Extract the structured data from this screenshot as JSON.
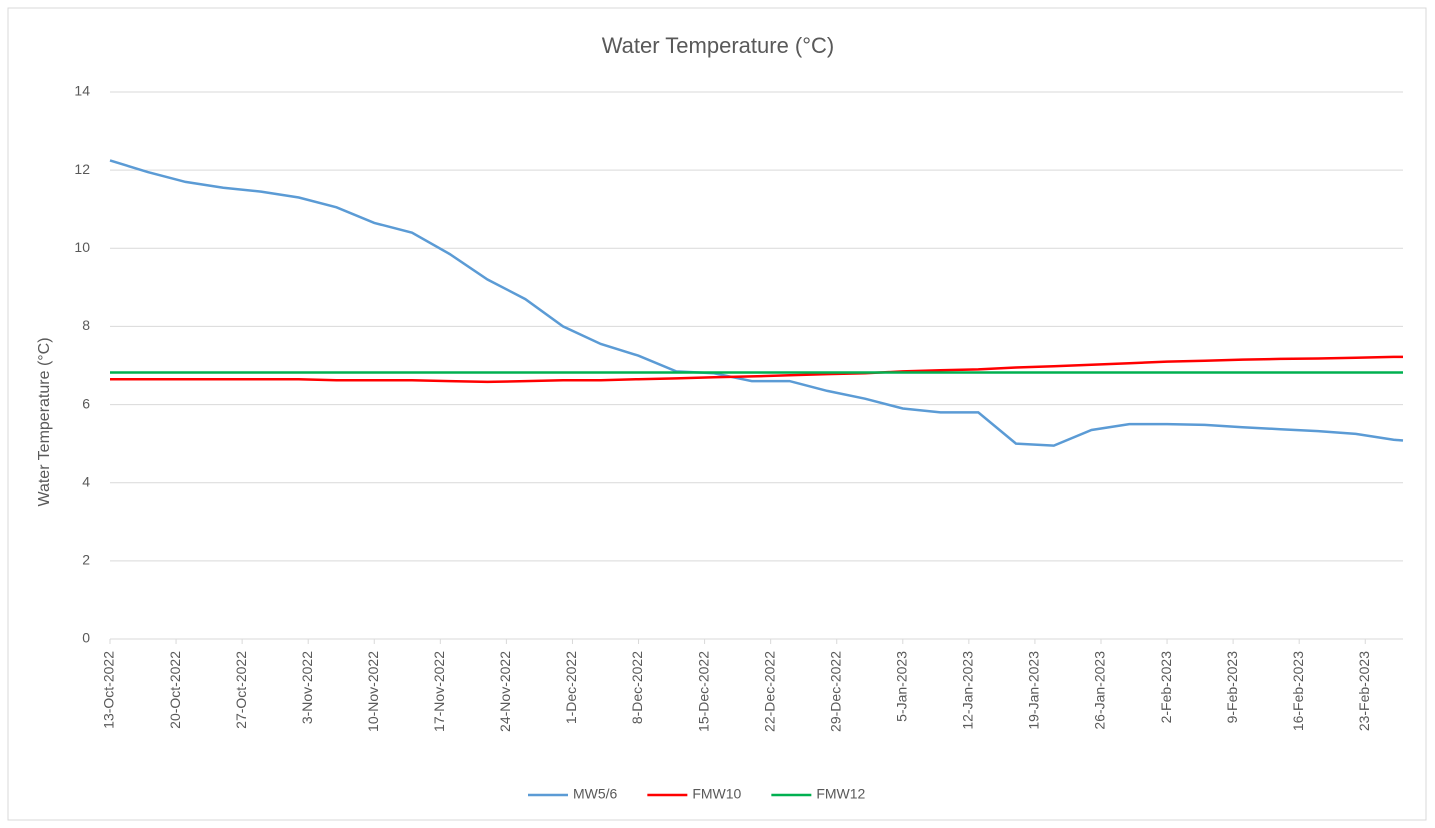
{
  "chart_data": {
    "type": "line",
    "title": "Water Temperature  (°C)",
    "y_label": "Water Temperature (°C)",
    "x": [
      "13-Oct-2022",
      "17-Oct-2022",
      "21-Oct-2022",
      "25-Oct-2022",
      "29-Oct-2022",
      "2-Nov-2022",
      "6-Nov-2022",
      "10-Nov-2022",
      "14-Nov-2022",
      "18-Nov-2022",
      "22-Nov-2022",
      "26-Nov-2022",
      "30-Nov-2022",
      "4-Dec-2022",
      "8-Dec-2022",
      "12-Dec-2022",
      "16-Dec-2022",
      "20-Dec-2022",
      "24-Dec-2022",
      "28-Dec-2022",
      "1-Jan-2023",
      "5-Jan-2023",
      "9-Jan-2023",
      "13-Jan-2023",
      "17-Jan-2023",
      "21-Jan-2023",
      "25-Jan-2023",
      "29-Jan-2023",
      "2-Feb-2023",
      "6-Feb-2023",
      "10-Feb-2023",
      "14-Feb-2023",
      "18-Feb-2023",
      "22-Feb-2023",
      "26-Feb-2023",
      "27-Feb-2023"
    ],
    "series": [
      {
        "name": "MW5/6",
        "color": "#5b9bd5",
        "values": [
          12.25,
          11.95,
          11.7,
          11.55,
          11.45,
          11.3,
          11.05,
          10.65,
          10.4,
          9.85,
          9.2,
          8.7,
          8.0,
          7.55,
          7.25,
          6.85,
          6.8,
          6.6,
          6.6,
          6.35,
          6.15,
          5.9,
          5.8,
          5.8,
          5.0,
          4.95,
          5.35,
          5.5,
          5.5,
          5.48,
          5.42,
          5.37,
          5.32,
          5.25,
          5.1,
          5.08
        ]
      },
      {
        "name": "FMW10",
        "color": "#ff0000",
        "values": [
          6.65,
          6.65,
          6.65,
          6.65,
          6.65,
          6.65,
          6.62,
          6.62,
          6.62,
          6.6,
          6.58,
          6.6,
          6.62,
          6.62,
          6.65,
          6.67,
          6.7,
          6.72,
          6.75,
          6.78,
          6.8,
          6.85,
          6.88,
          6.9,
          6.95,
          6.98,
          7.02,
          7.06,
          7.1,
          7.12,
          7.15,
          7.17,
          7.18,
          7.2,
          7.22,
          7.22
        ]
      },
      {
        "name": "FMW12",
        "color": "#00b050",
        "values": [
          6.82,
          6.82,
          6.82,
          6.82,
          6.82,
          6.82,
          6.82,
          6.82,
          6.82,
          6.82,
          6.82,
          6.82,
          6.82,
          6.82,
          6.82,
          6.82,
          6.82,
          6.82,
          6.82,
          6.82,
          6.82,
          6.82,
          6.82,
          6.82,
          6.82,
          6.82,
          6.82,
          6.82,
          6.82,
          6.82,
          6.82,
          6.82,
          6.82,
          6.82,
          6.82,
          6.82
        ]
      }
    ],
    "xlim": [
      "13-Oct-2022",
      "27-Feb-2023"
    ],
    "xticks": [
      "13-Oct-2022",
      "20-Oct-2022",
      "27-Oct-2022",
      "3-Nov-2022",
      "10-Nov-2022",
      "17-Nov-2022",
      "24-Nov-2022",
      "1-Dec-2022",
      "8-Dec-2022",
      "15-Dec-2022",
      "22-Dec-2022",
      "29-Dec-2022",
      "5-Jan-2023",
      "12-Jan-2023",
      "19-Jan-2023",
      "26-Jan-2023",
      "2-Feb-2023",
      "9-Feb-2023",
      "16-Feb-2023",
      "23-Feb-2023"
    ],
    "ylim": [
      0,
      14
    ],
    "yticks": [
      0,
      2,
      4,
      6,
      8,
      10,
      12,
      14
    ],
    "grid": true,
    "legend": "bottom"
  }
}
